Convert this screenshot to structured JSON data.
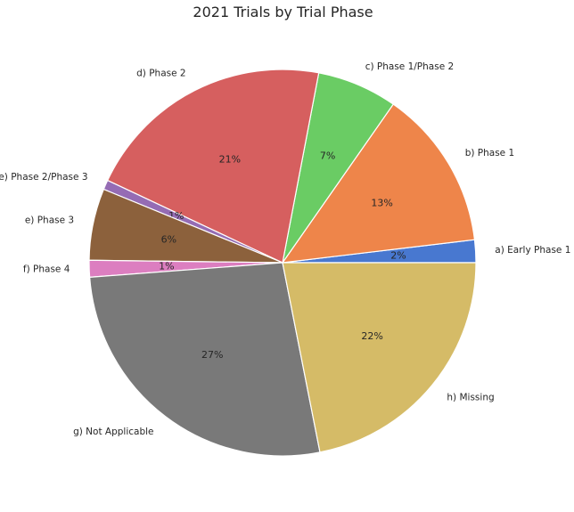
{
  "chart_data": {
    "type": "pie",
    "title": "2021 Trials by Trial Phase",
    "slices": [
      {
        "label": "a) Early Phase 1",
        "pct_text": "2%",
        "value": 1.9,
        "color": "#4878d0"
      },
      {
        "label": "b) Phase 1",
        "pct_text": "13%",
        "value": 13.4,
        "color": "#ee854a"
      },
      {
        "label": "c) Phase 1/Phase 2",
        "pct_text": "7%",
        "value": 6.7,
        "color": "#6acc64"
      },
      {
        "label": "d) Phase 2",
        "pct_text": "21%",
        "value": 21.0,
        "color": "#d65f5f"
      },
      {
        "label": "e) Phase 2/Phase 3",
        "pct_text": "1%",
        "value": 0.8,
        "color": "#956cb4"
      },
      {
        "label": "e) Phase 3",
        "pct_text": "6%",
        "value": 6.0,
        "color": "#8c613c"
      },
      {
        "label": "f) Phase 4",
        "pct_text": "1%",
        "value": 1.4,
        "color": "#dc7ec0"
      },
      {
        "label": "g) Not Applicable",
        "pct_text": "27%",
        "value": 26.9,
        "color": "#797979"
      },
      {
        "label": "h) Missing",
        "pct_text": "22%",
        "value": 21.9,
        "color": "#d5bb67"
      }
    ]
  }
}
